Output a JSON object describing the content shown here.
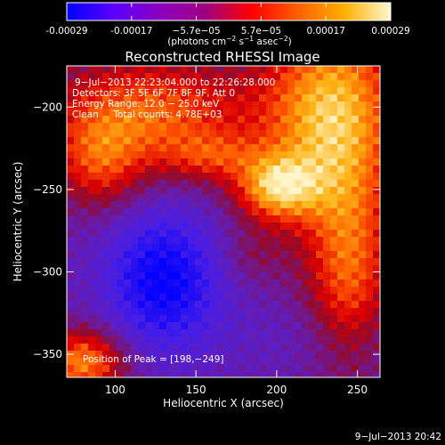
{
  "colorbar": {
    "tick_labels": [
      "-0.00029",
      "-0.00017",
      "−5.7e−05",
      "5.7e−05",
      "0.00017",
      "0.00029"
    ],
    "units_label_parts": [
      "(photons cm",
      "−2",
      " s",
      "−1",
      " asec",
      "−2",
      ")"
    ],
    "gradient_colors": [
      "#0000ff",
      "#5a00ff",
      "#8a00c0",
      "#a00080",
      "#ff0000",
      "#ff6000",
      "#ffb000",
      "#fff8d0"
    ]
  },
  "chart_data": {
    "type": "heatmap",
    "title": "Reconstructed RHESSI Image",
    "xlabel": "Heliocentric X (arcsec)",
    "ylabel": "Heliocentric Y (arcsec)",
    "xlim": [
      70,
      264
    ],
    "ylim": [
      -364,
      -175
    ],
    "x_ticks": [
      100,
      150,
      200,
      250
    ],
    "y_ticks": [
      -200,
      -250,
      -300,
      -350
    ],
    "x_tick_labels": [
      "100",
      "150",
      "200",
      "250"
    ],
    "y_tick_labels": [
      "−200",
      "−250",
      "−300",
      "−350"
    ],
    "value_range": [
      -0.00029,
      0.00029
    ],
    "peak_position": [
      198,
      -249
    ],
    "annotations": [
      "9−Jul−2013 22:23:04.000 to 22:26:28.000",
      "Detectors: 3F 5F 6F 7F 8F 9F, Att 0",
      "Energy Range: 12.0 − 25.0 keV",
      "Clean     Total counts: 4.78E+03"
    ],
    "peak_label": "Position of Peak = [198,−249]"
  },
  "footer": {
    "timestamp": "9−Jul−2013 20:42"
  }
}
